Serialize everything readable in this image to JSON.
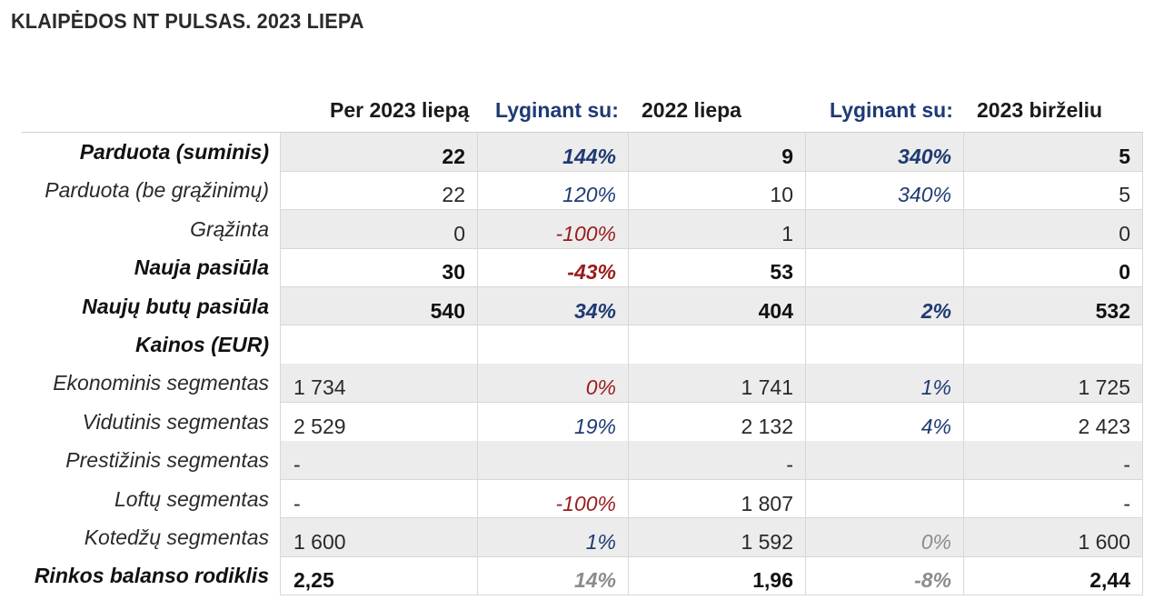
{
  "title": "KLAIPĖDOS NT PULSAS. 2023 LIEPA",
  "headers": [
    "Per 2023 liepą",
    "Lyginant su:",
    "2022 liepa",
    "Lyginant su:",
    "2023 birželiu"
  ],
  "colors": {
    "blue": "#1f3a73",
    "red": "#9a1b1b",
    "gray": "#8c8c8c",
    "shade": "#ececec"
  },
  "rows": [
    {
      "label": "Parduota (suminis)",
      "bold": true,
      "shade": true,
      "cells": [
        {
          "v": "22",
          "tone": "num"
        },
        {
          "v": "144%",
          "tone": "blue"
        },
        {
          "v": "9",
          "tone": "num"
        },
        {
          "v": "340%",
          "tone": "blue"
        },
        {
          "v": "5",
          "tone": "num"
        }
      ]
    },
    {
      "label": "Parduota (be grąžinimų)",
      "bold": false,
      "shade": false,
      "cells": [
        {
          "v": "22",
          "tone": "num"
        },
        {
          "v": "120%",
          "tone": "blue"
        },
        {
          "v": "10",
          "tone": "num"
        },
        {
          "v": "340%",
          "tone": "blue"
        },
        {
          "v": "5",
          "tone": "num"
        }
      ]
    },
    {
      "label": "Grąžinta",
      "bold": false,
      "shade": true,
      "cells": [
        {
          "v": "0",
          "tone": "num"
        },
        {
          "v": "-100%",
          "tone": "red"
        },
        {
          "v": "1",
          "tone": "num"
        },
        {
          "v": "",
          "tone": "blue"
        },
        {
          "v": "0",
          "tone": "num"
        }
      ]
    },
    {
      "label": "Nauja pasiūla",
      "bold": true,
      "shade": false,
      "cells": [
        {
          "v": "30",
          "tone": "num"
        },
        {
          "v": "-43%",
          "tone": "red"
        },
        {
          "v": "53",
          "tone": "num"
        },
        {
          "v": "",
          "tone": "blue"
        },
        {
          "v": "0",
          "tone": "num"
        }
      ]
    },
    {
      "label": "Naujų butų pasiūla",
      "bold": true,
      "shade": true,
      "cells": [
        {
          "v": "540",
          "tone": "num"
        },
        {
          "v": "34%",
          "tone": "blue"
        },
        {
          "v": "404",
          "tone": "num"
        },
        {
          "v": "2%",
          "tone": "blue"
        },
        {
          "v": "532",
          "tone": "num"
        }
      ]
    },
    {
      "label": "Kainos (EUR)",
      "bold": true,
      "shade": false,
      "cells": [
        {
          "v": "",
          "tone": "num"
        },
        {
          "v": "",
          "tone": "blue"
        },
        {
          "v": "",
          "tone": "num"
        },
        {
          "v": "",
          "tone": "blue"
        },
        {
          "v": "",
          "tone": "num"
        }
      ]
    },
    {
      "label": "Ekonominis segmentas",
      "bold": false,
      "shade": true,
      "cells": [
        {
          "v": "1 734",
          "tone": "num",
          "left": true
        },
        {
          "v": "0%",
          "tone": "red"
        },
        {
          "v": "1 741",
          "tone": "num"
        },
        {
          "v": "1%",
          "tone": "blue"
        },
        {
          "v": "1 725",
          "tone": "num"
        }
      ]
    },
    {
      "label": "Vidutinis segmentas",
      "bold": false,
      "shade": false,
      "cells": [
        {
          "v": "2 529",
          "tone": "num",
          "left": true
        },
        {
          "v": "19%",
          "tone": "blue"
        },
        {
          "v": "2 132",
          "tone": "num"
        },
        {
          "v": "4%",
          "tone": "blue"
        },
        {
          "v": "2 423",
          "tone": "num"
        }
      ]
    },
    {
      "label": "Prestižinis segmentas",
      "bold": false,
      "shade": true,
      "cells": [
        {
          "v": "-",
          "tone": "num",
          "left": true
        },
        {
          "v": "",
          "tone": "blue"
        },
        {
          "v": "-",
          "tone": "num"
        },
        {
          "v": "",
          "tone": "blue"
        },
        {
          "v": "-",
          "tone": "num"
        }
      ]
    },
    {
      "label": "Loftų segmentas",
      "bold": false,
      "shade": false,
      "cells": [
        {
          "v": "-",
          "tone": "num",
          "left": true
        },
        {
          "v": "-100%",
          "tone": "red"
        },
        {
          "v": "1 807",
          "tone": "num"
        },
        {
          "v": "",
          "tone": "blue"
        },
        {
          "v": "-",
          "tone": "num"
        }
      ]
    },
    {
      "label": "Kotedžų segmentas",
      "bold": false,
      "shade": true,
      "cells": [
        {
          "v": "1 600",
          "tone": "num",
          "left": true
        },
        {
          "v": "1%",
          "tone": "blue"
        },
        {
          "v": "1 592",
          "tone": "num"
        },
        {
          "v": "0%",
          "tone": "gray"
        },
        {
          "v": "1 600",
          "tone": "num"
        }
      ]
    },
    {
      "label": "Rinkos balanso rodiklis",
      "bold": true,
      "shade": false,
      "cells": [
        {
          "v": "2,25",
          "tone": "num",
          "left": true
        },
        {
          "v": "14%",
          "tone": "gray"
        },
        {
          "v": "1,96",
          "tone": "num"
        },
        {
          "v": "-8%",
          "tone": "gray"
        },
        {
          "v": "2,44",
          "tone": "num"
        }
      ]
    }
  ]
}
